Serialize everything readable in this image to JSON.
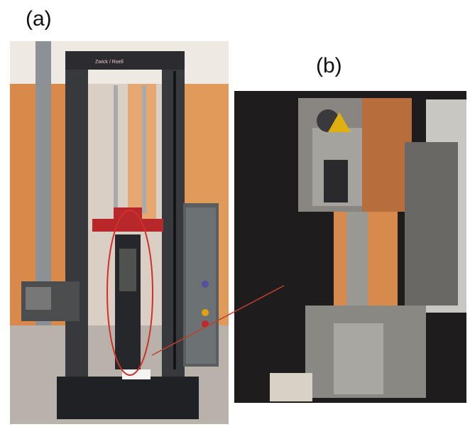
{
  "labels": {
    "a": "(a)",
    "b": "(b)"
  },
  "machine_brand": "Zwick / Roell"
}
